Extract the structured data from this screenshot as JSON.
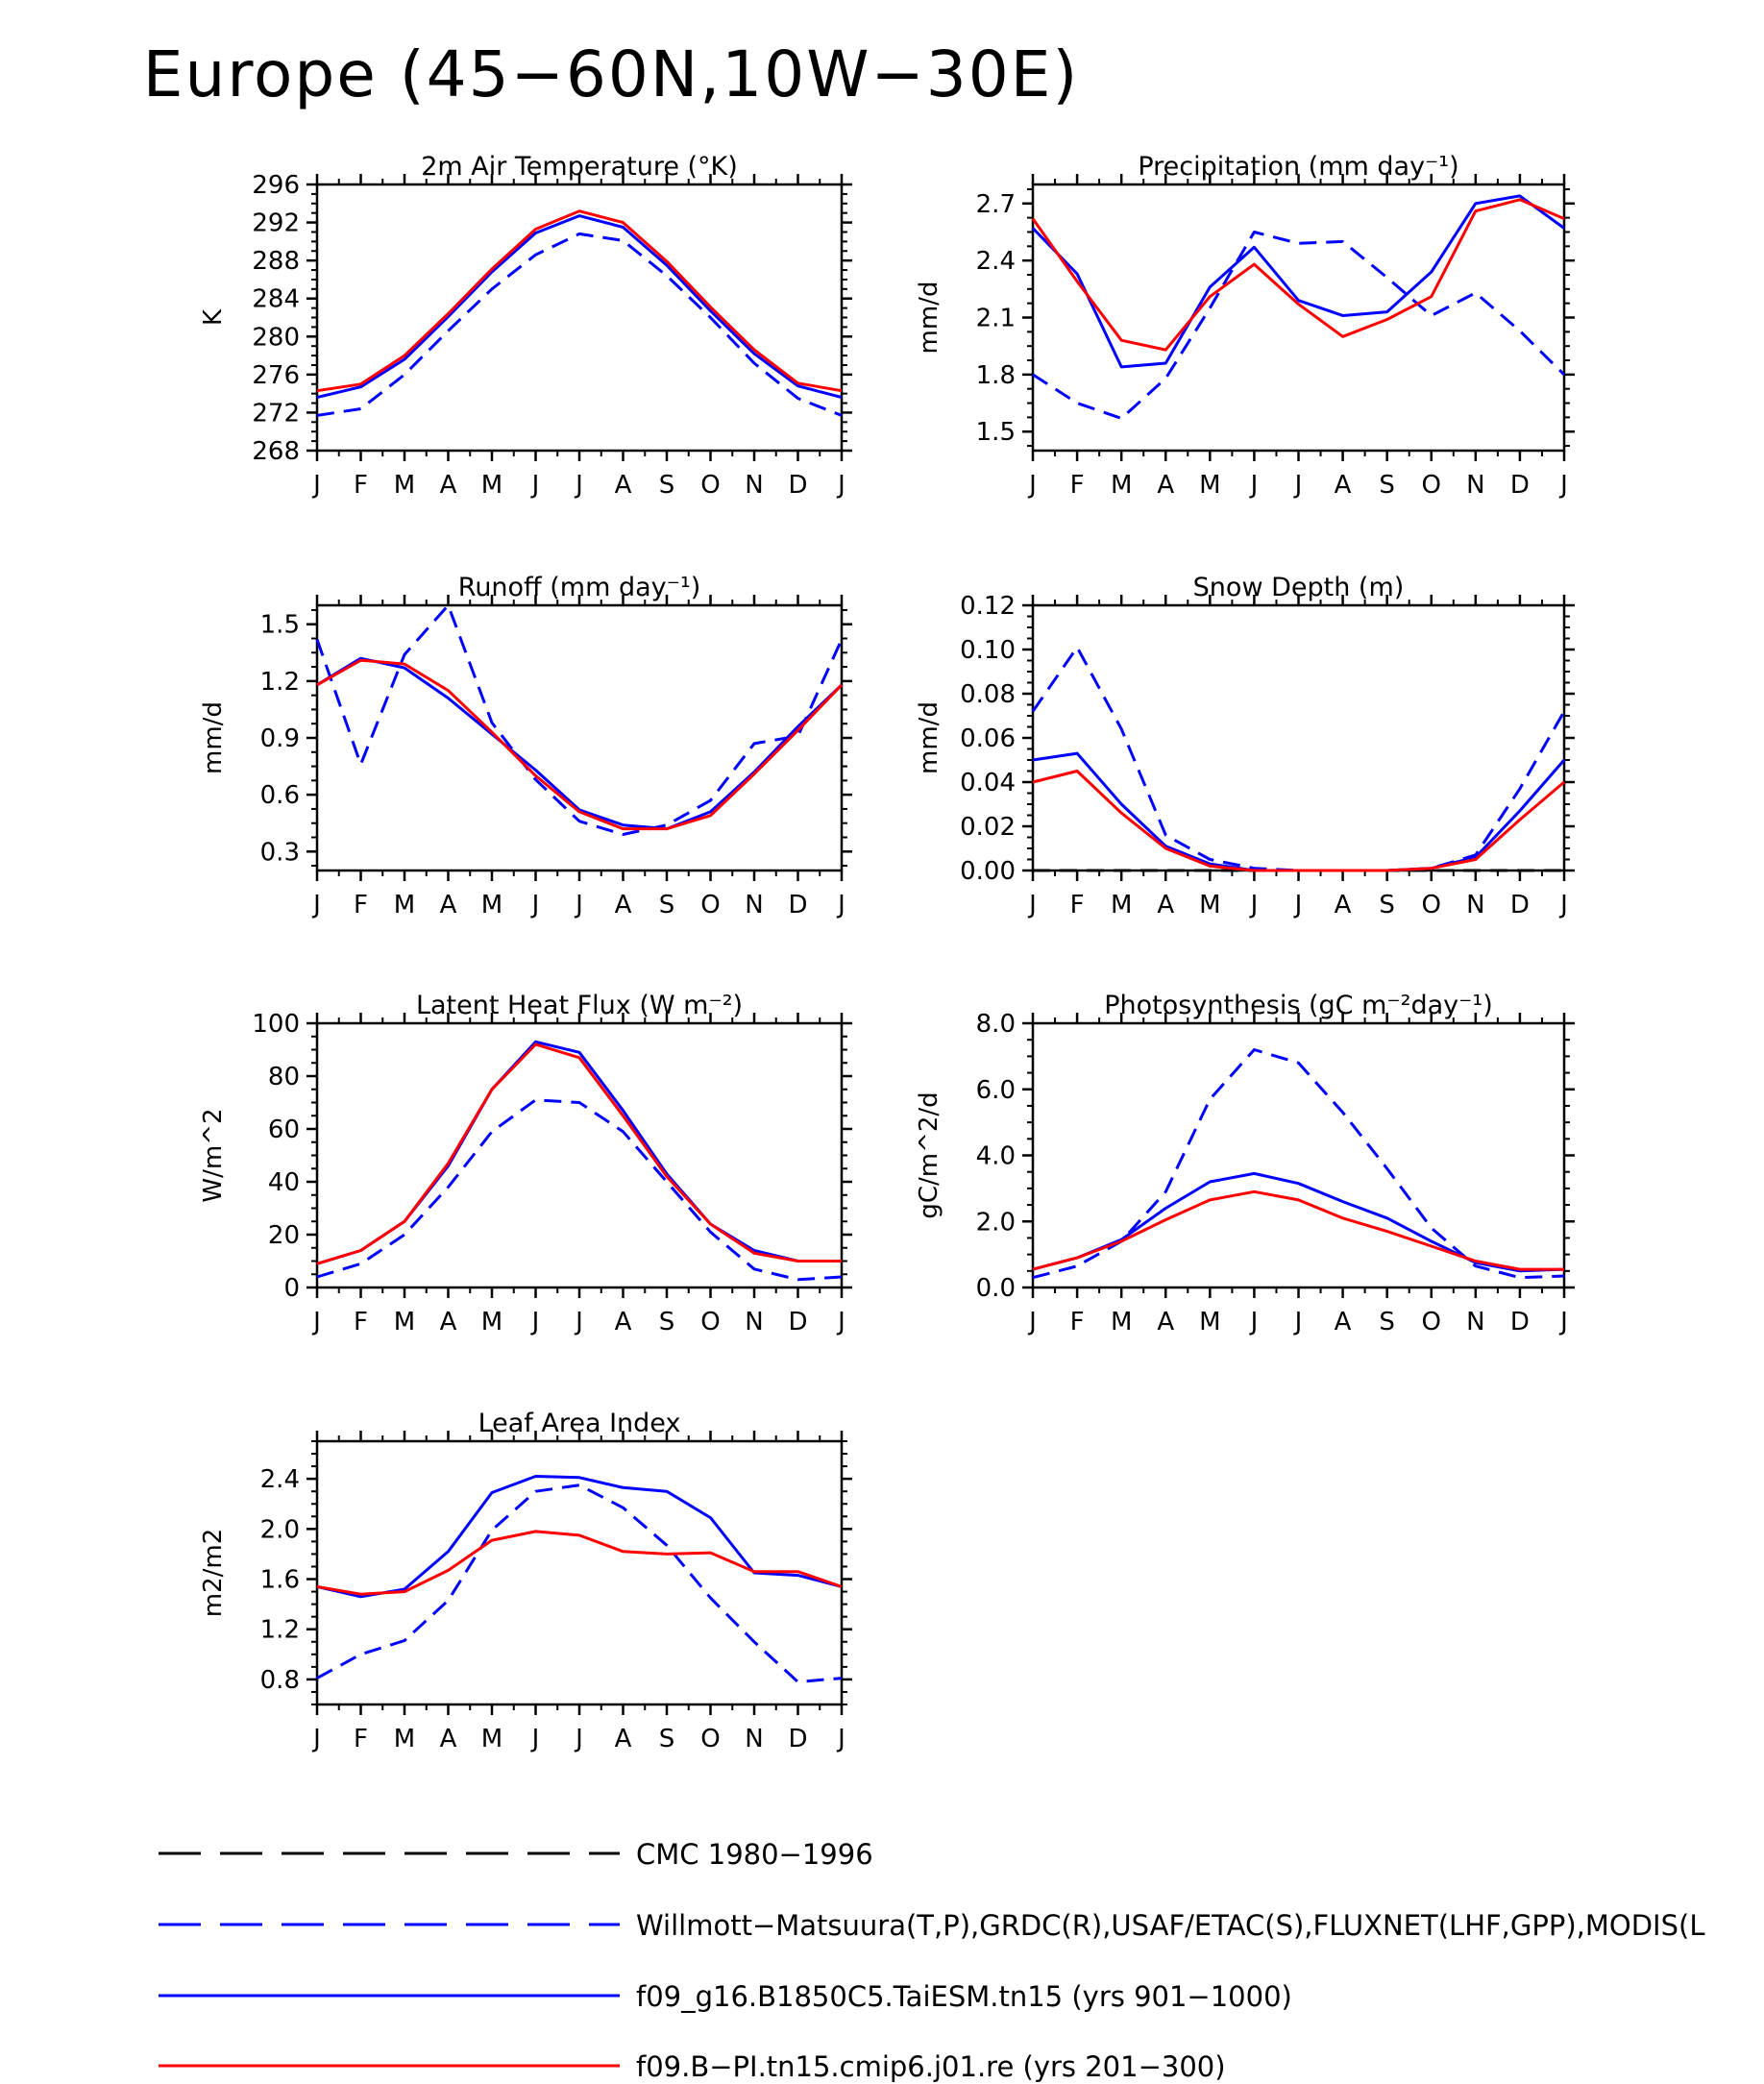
{
  "figure_title": "Europe (45−60N,10W−30E)",
  "months": [
    "J",
    "F",
    "M",
    "A",
    "M",
    "J",
    "J",
    "A",
    "S",
    "O",
    "N",
    "D",
    "J"
  ],
  "colors": {
    "obs": "#0000ff",
    "model1": "#0000ff",
    "model2": "#ff0000",
    "cmc": "#000000"
  },
  "legend": [
    {
      "label": "CMC 1980−1996",
      "color": "#000000",
      "style": "dashed"
    },
    {
      "label": "Willmott−Matsuura(T,P),GRDC(R),USAF/ETAC(S),FLUXNET(LHF,GPP),MODIS(L",
      "color": "#0000ff",
      "style": "dashed"
    },
    {
      "label": "f09_g16.B1850C5.TaiESM.tn15 (yrs 901−1000)",
      "color": "#0000ff",
      "style": "solid"
    },
    {
      "label": "f09.B−PI.tn15.cmip6.j01.re (yrs 201−300)",
      "color": "#ff0000",
      "style": "solid"
    }
  ],
  "chart_data": [
    {
      "type": "line",
      "title": "2m Air Temperature (°K)",
      "ylabel": "K",
      "ylim": [
        268,
        296
      ],
      "yticks": [
        268,
        272,
        276,
        280,
        284,
        288,
        292,
        296
      ],
      "ytick_labels": [
        "268",
        "272",
        "276",
        "280",
        "284",
        "288",
        "292",
        "296"
      ],
      "x": [
        "J",
        "F",
        "M",
        "A",
        "M",
        "J",
        "J",
        "A",
        "S",
        "O",
        "N",
        "D",
        "J"
      ],
      "series": [
        {
          "name": "Willmott−Matsuura(T,P),GRDC(R),USAF/ETAC(S),FLUXNET(LHF,GPP),MODIS(L",
          "style": "dashed",
          "color": "#0000ff",
          "values": [
            271.7,
            272.4,
            276.0,
            280.6,
            285.0,
            288.6,
            290.8,
            290.1,
            286.4,
            282.0,
            277.2,
            273.5,
            271.7
          ]
        },
        {
          "name": "f09_g16.B1850C5.TaiESM.tn15 (yrs 901−1000)",
          "style": "solid",
          "color": "#0000ff",
          "values": [
            273.6,
            274.7,
            277.6,
            282.1,
            286.8,
            290.9,
            292.7,
            291.5,
            287.5,
            282.7,
            278.2,
            274.8,
            273.6
          ]
        },
        {
          "name": "f09.B−PI.tn15.cmip6.j01.re (yrs 201−300)",
          "style": "solid",
          "color": "#ff0000",
          "values": [
            274.3,
            275.0,
            278.0,
            282.4,
            287.1,
            291.3,
            293.2,
            292.0,
            287.9,
            283.1,
            278.6,
            275.1,
            274.3
          ]
        }
      ]
    },
    {
      "type": "line",
      "title": "Precipitation (mm day⁻¹)",
      "ylabel": "mm/d",
      "ylim": [
        1.4,
        2.8
      ],
      "yticks": [
        1.5,
        1.8,
        2.1,
        2.4,
        2.7
      ],
      "ytick_labels": [
        "1.5",
        "1.8",
        "2.1",
        "2.4",
        "2.7"
      ],
      "x": [
        "J",
        "F",
        "M",
        "A",
        "M",
        "J",
        "J",
        "A",
        "S",
        "O",
        "N",
        "D",
        "J"
      ],
      "series": [
        {
          "name": "Willmott−Matsuura(T,P),GRDC(R),USAF/ETAC(S),FLUXNET(LHF,GPP),MODIS(L",
          "style": "dashed",
          "color": "#0000ff",
          "values": [
            1.8,
            1.65,
            1.57,
            1.78,
            2.15,
            2.55,
            2.49,
            2.5,
            2.31,
            2.11,
            2.23,
            2.03,
            1.8
          ]
        },
        {
          "name": "f09_g16.B1850C5.TaiESM.tn15 (yrs 901−1000)",
          "style": "solid",
          "color": "#0000ff",
          "values": [
            2.57,
            2.33,
            1.84,
            1.86,
            2.26,
            2.47,
            2.19,
            2.11,
            2.13,
            2.34,
            2.7,
            2.74,
            2.57
          ]
        },
        {
          "name": "f09.B−PI.tn15.cmip6.j01.re (yrs 201−300)",
          "style": "solid",
          "color": "#ff0000",
          "values": [
            2.62,
            2.29,
            1.98,
            1.93,
            2.21,
            2.38,
            2.17,
            2.0,
            2.09,
            2.21,
            2.66,
            2.72,
            2.62
          ]
        }
      ]
    },
    {
      "type": "line",
      "title": "Runoff (mm day⁻¹)",
      "ylabel": "mm/d",
      "ylim": [
        0.2,
        1.6
      ],
      "yticks": [
        0.3,
        0.6,
        0.9,
        1.2,
        1.5
      ],
      "ytick_labels": [
        "0.3",
        "0.6",
        "0.9",
        "1.2",
        "1.5"
      ],
      "x": [
        "J",
        "F",
        "M",
        "A",
        "M",
        "J",
        "J",
        "A",
        "S",
        "O",
        "N",
        "D",
        "J"
      ],
      "series": [
        {
          "name": "Willmott−Matsuura(T,P),GRDC(R),USAF/ETAC(S),FLUXNET(LHF,GPP),MODIS(L",
          "style": "dashed",
          "color": "#0000ff",
          "values": [
            1.42,
            0.76,
            1.34,
            1.6,
            0.98,
            0.68,
            0.46,
            0.39,
            0.44,
            0.57,
            0.87,
            0.91,
            1.42
          ]
        },
        {
          "name": "f09_g16.B1850C5.TaiESM.tn15 (yrs 901−1000)",
          "style": "solid",
          "color": "#0000ff",
          "values": [
            1.18,
            1.32,
            1.27,
            1.11,
            0.92,
            0.73,
            0.52,
            0.44,
            0.42,
            0.51,
            0.72,
            0.96,
            1.18
          ]
        },
        {
          "name": "f09.B−PI.tn15.cmip6.j01.re (yrs 201−300)",
          "style": "solid",
          "color": "#ff0000",
          "values": [
            1.18,
            1.31,
            1.29,
            1.15,
            0.93,
            0.7,
            0.51,
            0.42,
            0.42,
            0.49,
            0.71,
            0.94,
            1.18
          ]
        }
      ]
    },
    {
      "type": "line",
      "title": "Snow Depth (m)",
      "ylabel": "mm/d",
      "ylim": [
        0.0,
        0.12
      ],
      "yticks": [
        0.0,
        0.02,
        0.04,
        0.06,
        0.08,
        0.1,
        0.12
      ],
      "ytick_labels": [
        "0.00",
        "0.02",
        "0.04",
        "0.06",
        "0.08",
        "0.10",
        "0.12"
      ],
      "x": [
        "J",
        "F",
        "M",
        "A",
        "M",
        "J",
        "J",
        "A",
        "S",
        "O",
        "N",
        "D",
        "J"
      ],
      "series": [
        {
          "name": "CMC 1980−1996",
          "style": "dashed",
          "color": "#000000",
          "values": [
            0,
            0,
            0,
            0,
            0,
            0,
            0,
            0,
            0,
            0,
            0,
            0,
            0
          ]
        },
        {
          "name": "Willmott−Matsuura(T,P),GRDC(R),USAF/ETAC(S),FLUXNET(LHF,GPP),MODIS(L",
          "style": "dashed",
          "color": "#0000ff",
          "values": [
            0.072,
            0.101,
            0.064,
            0.016,
            0.005,
            0.001,
            0.0,
            0.0,
            0.0,
            0.001,
            0.007,
            0.037,
            0.072
          ]
        },
        {
          "name": "f09_g16.B1850C5.TaiESM.tn15 (yrs 901−1000)",
          "style": "solid",
          "color": "#0000ff",
          "values": [
            0.05,
            0.053,
            0.03,
            0.011,
            0.003,
            0.0,
            0.0,
            0.0,
            0.0,
            0.001,
            0.006,
            0.027,
            0.05
          ]
        },
        {
          "name": "f09.B−PI.tn15.cmip6.j01.re (yrs 201−300)",
          "style": "solid",
          "color": "#ff0000",
          "values": [
            0.04,
            0.045,
            0.026,
            0.01,
            0.002,
            0.0,
            0.0,
            0.0,
            0.0,
            0.001,
            0.005,
            0.023,
            0.04
          ]
        }
      ]
    },
    {
      "type": "line",
      "title": "Latent Heat Flux (W m⁻²)",
      "ylabel": "W/m^2",
      "ylim": [
        0,
        100
      ],
      "yticks": [
        0,
        20,
        40,
        60,
        80,
        100
      ],
      "ytick_labels": [
        "0",
        "20",
        "40",
        "60",
        "80",
        "100"
      ],
      "x": [
        "J",
        "F",
        "M",
        "A",
        "M",
        "J",
        "J",
        "A",
        "S",
        "O",
        "N",
        "D",
        "J"
      ],
      "series": [
        {
          "name": "Willmott−Matsuura(T,P),GRDC(R),USAF/ETAC(S),FLUXNET(LHF,GPP),MODIS(L",
          "style": "dashed",
          "color": "#0000ff",
          "values": [
            4,
            9,
            20,
            38,
            59,
            71,
            70,
            59,
            40,
            21,
            7,
            3,
            4
          ]
        },
        {
          "name": "f09_g16.B1850C5.TaiESM.tn15 (yrs 901−1000)",
          "style": "solid",
          "color": "#0000ff",
          "values": [
            9,
            14,
            25,
            46,
            75,
            93,
            89,
            67,
            43,
            24,
            14,
            10,
            10
          ]
        },
        {
          "name": "f09.B−PI.tn15.cmip6.j01.re (yrs 201−300)",
          "style": "solid",
          "color": "#ff0000",
          "values": [
            9,
            14,
            25,
            47,
            75,
            92,
            87,
            65,
            42,
            24,
            13,
            10,
            10
          ]
        }
      ]
    },
    {
      "type": "line",
      "title": "Photosynthesis (gC m⁻²day⁻¹)",
      "ylabel": "gC/m^2/d",
      "ylim": [
        0,
        8
      ],
      "yticks": [
        0,
        2,
        4,
        6,
        8
      ],
      "ytick_labels": [
        "0.0",
        "2.0",
        "4.0",
        "6.0",
        "8.0"
      ],
      "x": [
        "J",
        "F",
        "M",
        "A",
        "M",
        "J",
        "J",
        "A",
        "S",
        "O",
        "N",
        "D",
        "J"
      ],
      "series": [
        {
          "name": "Willmott−Matsuura(T,P),GRDC(R),USAF/ETAC(S),FLUXNET(LHF,GPP),MODIS(L",
          "style": "dashed",
          "color": "#0000ff",
          "values": [
            0.3,
            0.65,
            1.4,
            2.9,
            5.7,
            7.2,
            6.8,
            5.3,
            3.6,
            1.8,
            0.65,
            0.3,
            0.35
          ]
        },
        {
          "name": "f09_g16.B1850C5.TaiESM.tn15 (yrs 901−1000)",
          "style": "solid",
          "color": "#0000ff",
          "values": [
            0.55,
            0.9,
            1.45,
            2.4,
            3.2,
            3.45,
            3.15,
            2.6,
            2.1,
            1.4,
            0.75,
            0.5,
            0.55
          ]
        },
        {
          "name": "f09.B−PI.tn15.cmip6.j01.re (yrs 201−300)",
          "style": "solid",
          "color": "#ff0000",
          "values": [
            0.55,
            0.9,
            1.4,
            2.05,
            2.65,
            2.9,
            2.65,
            2.1,
            1.7,
            1.25,
            0.8,
            0.55,
            0.55
          ]
        }
      ]
    },
    {
      "type": "line",
      "title": "Leaf Area Index",
      "ylabel": "m2/m2",
      "ylim": [
        0.6,
        2.7
      ],
      "yticks": [
        0.8,
        1.2,
        1.6,
        2.0,
        2.4
      ],
      "ytick_labels": [
        "0.8",
        "1.2",
        "1.6",
        "2.0",
        "2.4"
      ],
      "x": [
        "J",
        "F",
        "M",
        "A",
        "M",
        "J",
        "J",
        "A",
        "S",
        "O",
        "N",
        "D",
        "J"
      ],
      "series": [
        {
          "name": "Willmott−Matsuura(T,P),GRDC(R),USAF/ETAC(S),FLUXNET(LHF,GPP),MODIS(L",
          "style": "dashed",
          "color": "#0000ff",
          "values": [
            0.81,
            1.0,
            1.11,
            1.43,
            1.99,
            2.3,
            2.35,
            2.17,
            1.87,
            1.45,
            1.1,
            0.78,
            0.81
          ]
        },
        {
          "name": "f09_g16.B1850C5.TaiESM.tn15 (yrs 901−1000)",
          "style": "solid",
          "color": "#0000ff",
          "values": [
            1.54,
            1.46,
            1.52,
            1.82,
            2.29,
            2.42,
            2.41,
            2.33,
            2.3,
            2.09,
            1.65,
            1.63,
            1.54
          ]
        },
        {
          "name": "f09.B−PI.tn15.cmip6.j01.re (yrs 201−300)",
          "style": "solid",
          "color": "#ff0000",
          "values": [
            1.54,
            1.48,
            1.5,
            1.67,
            1.91,
            1.98,
            1.95,
            1.82,
            1.8,
            1.81,
            1.66,
            1.66,
            1.54
          ]
        }
      ]
    }
  ]
}
